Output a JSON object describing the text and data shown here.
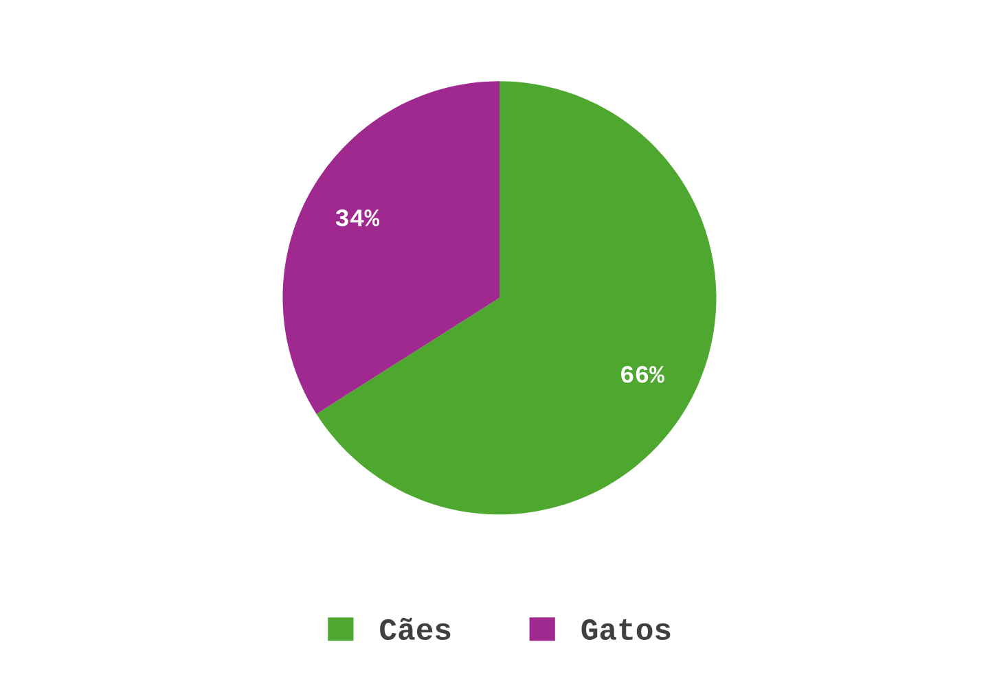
{
  "chart_data": {
    "type": "pie",
    "categories": [
      "Cães",
      "Gatos"
    ],
    "values": [
      66,
      34
    ],
    "colors": [
      "#4ea72e",
      "#a0298f"
    ],
    "value_labels": [
      "66%",
      "34%"
    ],
    "legend": "bottom"
  }
}
